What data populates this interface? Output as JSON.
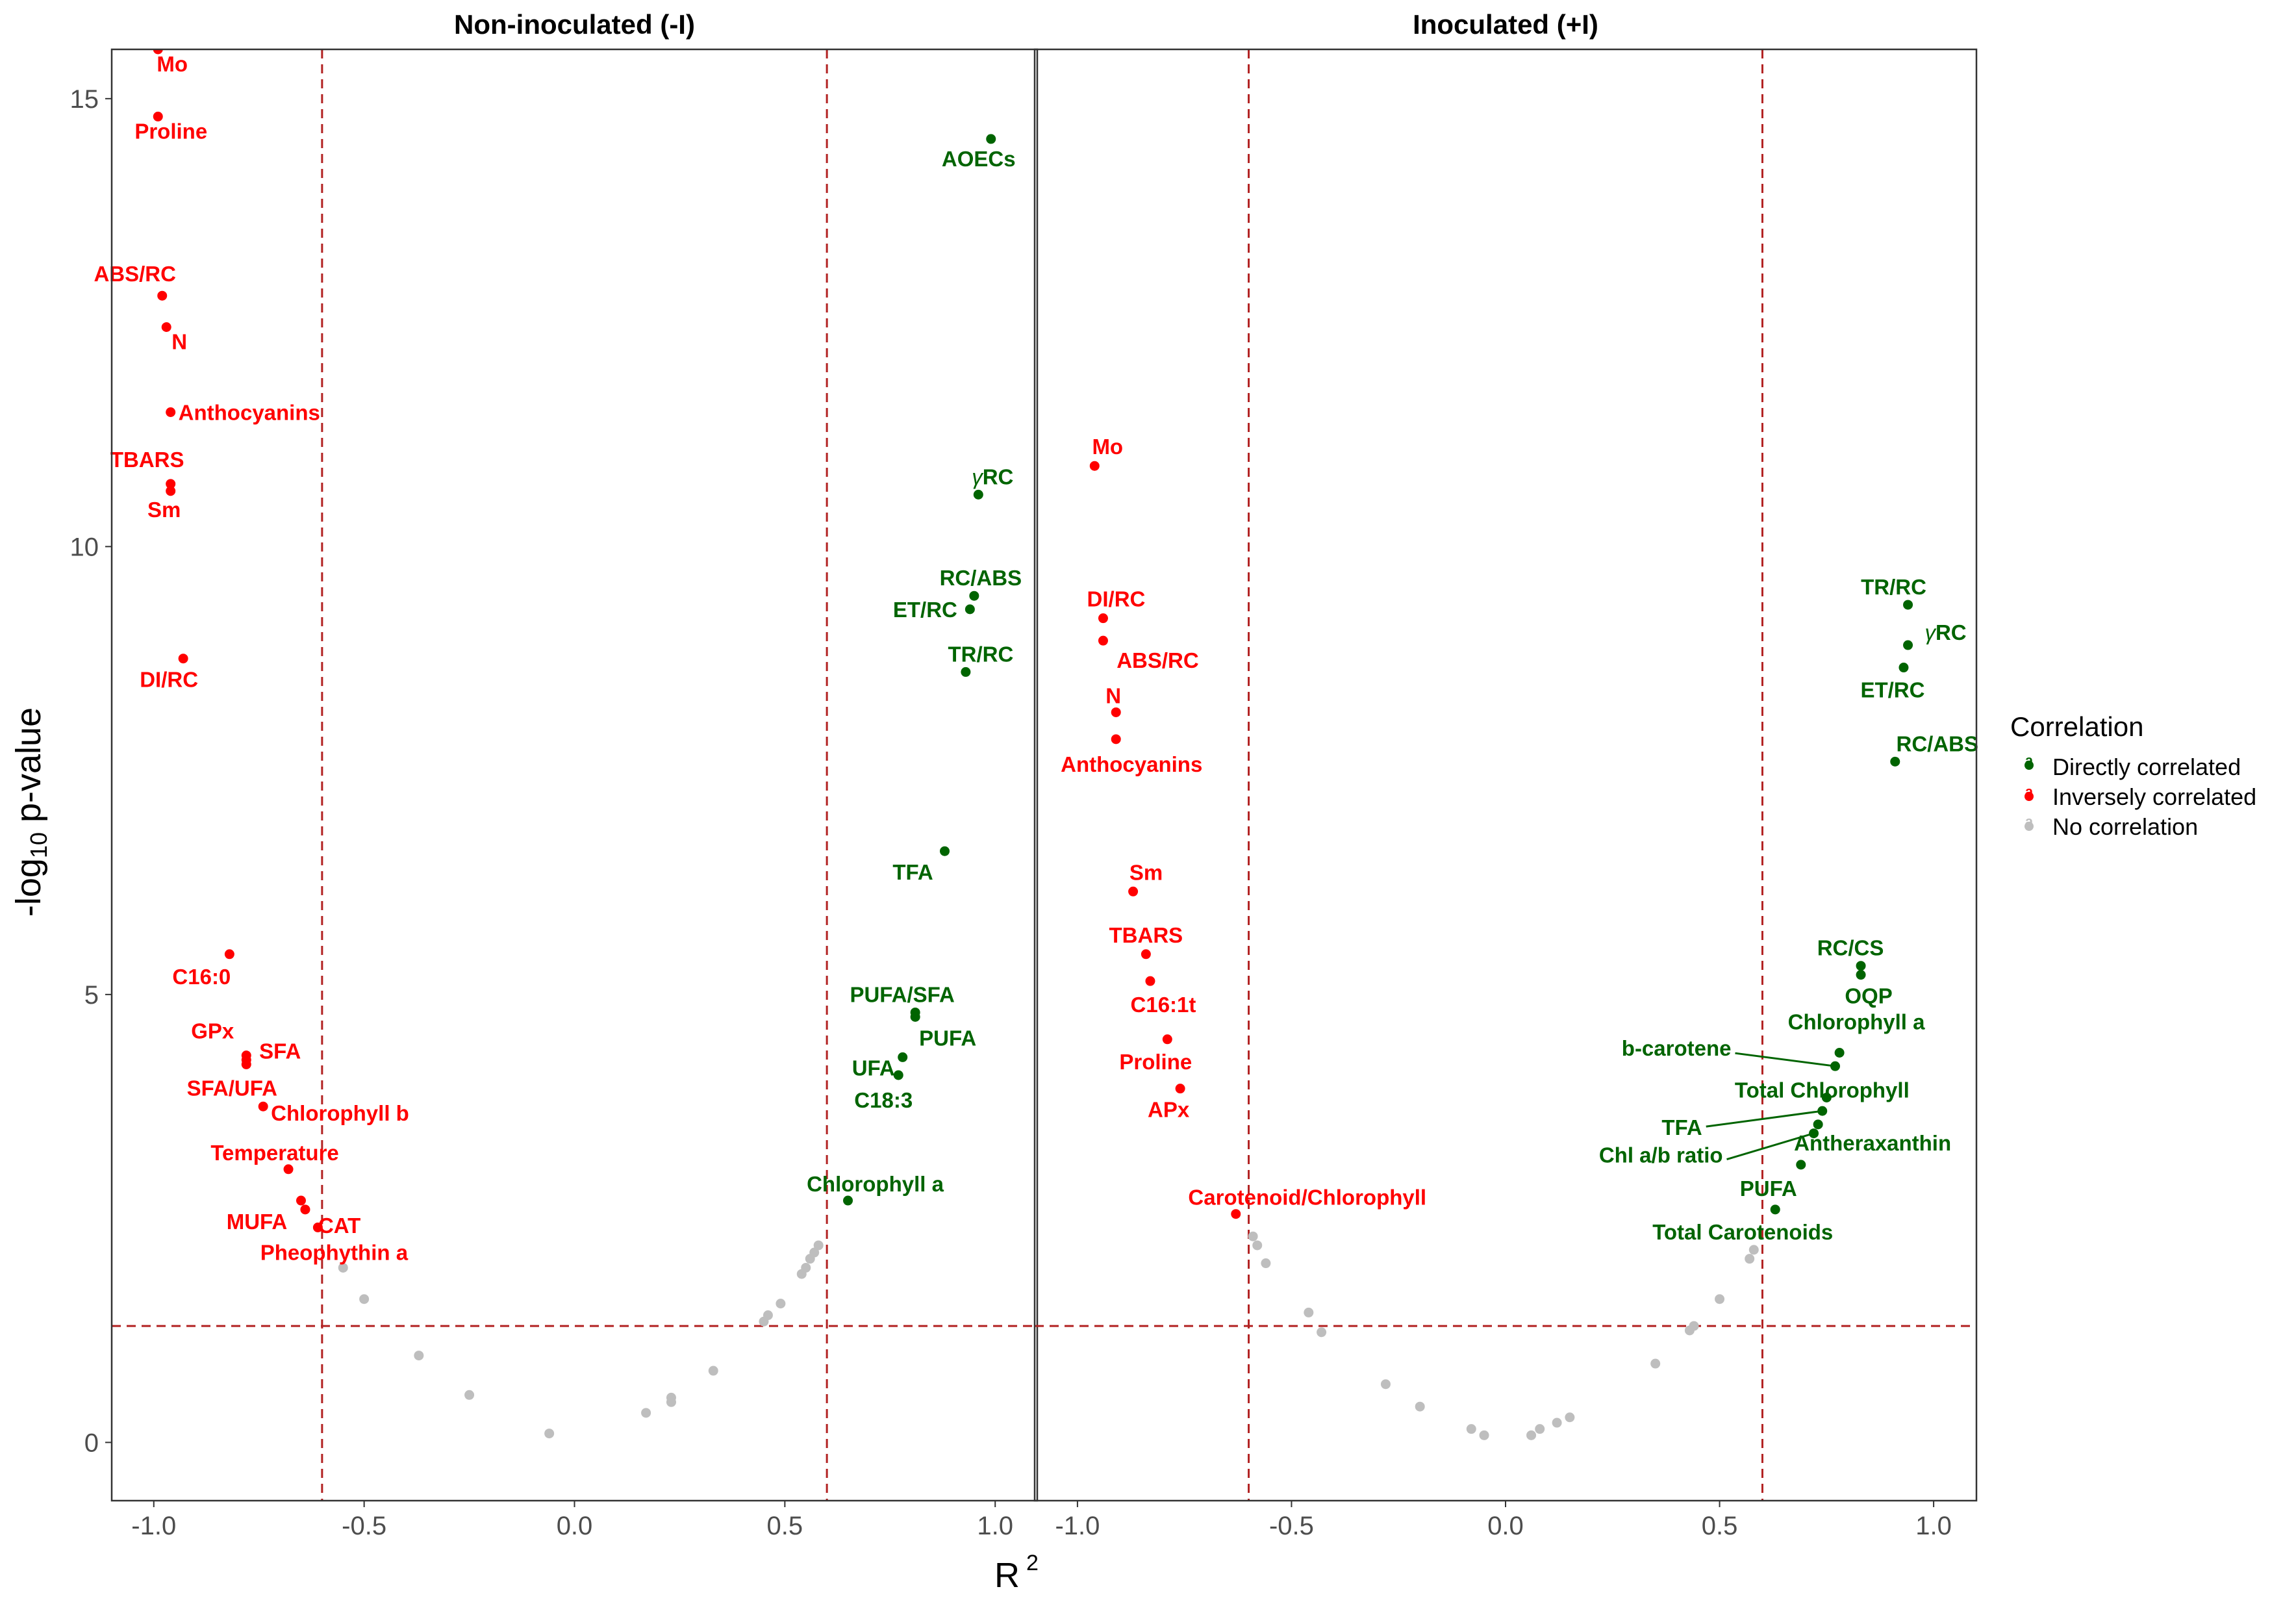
{
  "chart_data": [
    {
      "type": "scatter",
      "panel_title": "Non-inoculated (-I)",
      "xlim": [
        -1.1,
        1.1
      ],
      "ylim": [
        -0.65,
        15.55
      ],
      "x_ticks": [
        -1.0,
        -0.5,
        0.0,
        0.5,
        1.0
      ],
      "x_tick_labels": [
        "-1.0",
        "-0.5",
        "0.0",
        "0.5",
        "1.0"
      ],
      "y_ticks": [
        0,
        5,
        10,
        15
      ],
      "y_tick_labels": [
        "0",
        "5",
        "10",
        "15"
      ],
      "thresholds": {
        "x": [
          -0.6,
          0.6
        ],
        "y": 1.3
      },
      "points": [
        {
          "label": "Mo",
          "x": -0.99,
          "y": 15.55,
          "cat": "inverse"
        },
        {
          "label": "Proline",
          "x": -0.99,
          "y": 14.8,
          "cat": "inverse"
        },
        {
          "label": "ABS/RC",
          "x": -0.98,
          "y": 12.8,
          "cat": "inverse"
        },
        {
          "label": "N",
          "x": -0.97,
          "y": 12.45,
          "cat": "inverse"
        },
        {
          "label": "Anthocyanins",
          "x": -0.96,
          "y": 11.5,
          "cat": "inverse"
        },
        {
          "label": "TBARS",
          "x": -0.96,
          "y": 10.7,
          "cat": "inverse"
        },
        {
          "label": "Sm",
          "x": -0.96,
          "y": 10.62,
          "cat": "inverse"
        },
        {
          "label": "DI/RC",
          "x": -0.93,
          "y": 8.75,
          "cat": "inverse"
        },
        {
          "label": "C16:0",
          "x": -0.82,
          "y": 5.45,
          "cat": "inverse"
        },
        {
          "label": "GPx",
          "x": -0.78,
          "y": 4.32,
          "cat": "inverse"
        },
        {
          "label": "SFA",
          "x": -0.78,
          "y": 4.27,
          "cat": "inverse"
        },
        {
          "label": "SFA/UFA",
          "x": -0.78,
          "y": 4.22,
          "cat": "inverse"
        },
        {
          "label": "Chlorophyll b",
          "x": -0.74,
          "y": 3.75,
          "cat": "inverse"
        },
        {
          "label": "Temperature",
          "x": -0.68,
          "y": 3.05,
          "cat": "inverse"
        },
        {
          "label": "MUFA",
          "x": -0.65,
          "y": 2.7,
          "cat": "inverse"
        },
        {
          "label": "CAT",
          "x": -0.64,
          "y": 2.6,
          "cat": "inverse"
        },
        {
          "label": "Pheophythin a",
          "x": -0.61,
          "y": 2.4,
          "cat": "inverse"
        },
        {
          "label": "AOECs",
          "x": 0.99,
          "y": 14.55,
          "cat": "direct"
        },
        {
          "label": "γRC",
          "x": 0.96,
          "y": 10.58,
          "cat": "direct"
        },
        {
          "label": "RC/ABS",
          "x": 0.95,
          "y": 9.45,
          "cat": "direct"
        },
        {
          "label": "ET/RC",
          "x": 0.94,
          "y": 9.3,
          "cat": "direct"
        },
        {
          "label": "TR/RC",
          "x": 0.93,
          "y": 8.6,
          "cat": "direct"
        },
        {
          "label": "TFA",
          "x": 0.88,
          "y": 6.6,
          "cat": "direct"
        },
        {
          "label": "PUFA/SFA",
          "x": 0.81,
          "y": 4.8,
          "cat": "direct"
        },
        {
          "label": "PUFA",
          "x": 0.81,
          "y": 4.75,
          "cat": "direct"
        },
        {
          "label": "UFA",
          "x": 0.78,
          "y": 4.3,
          "cat": "direct"
        },
        {
          "label": "C18:3",
          "x": 0.77,
          "y": 4.1,
          "cat": "direct"
        },
        {
          "label": "Chlorophyll a",
          "x": 0.65,
          "y": 2.7,
          "cat": "direct"
        },
        {
          "label": "",
          "x": -0.55,
          "y": 1.95,
          "cat": "none"
        },
        {
          "label": "",
          "x": -0.5,
          "y": 1.6,
          "cat": "none"
        },
        {
          "label": "",
          "x": -0.37,
          "y": 0.97,
          "cat": "none"
        },
        {
          "label": "",
          "x": -0.25,
          "y": 0.53,
          "cat": "none"
        },
        {
          "label": "",
          "x": -0.06,
          "y": 0.1,
          "cat": "none"
        },
        {
          "label": "",
          "x": 0.17,
          "y": 0.33,
          "cat": "none"
        },
        {
          "label": "",
          "x": 0.23,
          "y": 0.45,
          "cat": "none"
        },
        {
          "label": "",
          "x": 0.23,
          "y": 0.5,
          "cat": "none"
        },
        {
          "label": "",
          "x": 0.33,
          "y": 0.8,
          "cat": "none"
        },
        {
          "label": "",
          "x": 0.45,
          "y": 1.35,
          "cat": "none"
        },
        {
          "label": "",
          "x": 0.46,
          "y": 1.42,
          "cat": "none"
        },
        {
          "label": "",
          "x": 0.49,
          "y": 1.55,
          "cat": "none"
        },
        {
          "label": "",
          "x": 0.54,
          "y": 1.88,
          "cat": "none"
        },
        {
          "label": "",
          "x": 0.55,
          "y": 1.95,
          "cat": "none"
        },
        {
          "label": "",
          "x": 0.56,
          "y": 2.05,
          "cat": "none"
        },
        {
          "label": "",
          "x": 0.57,
          "y": 2.12,
          "cat": "none"
        },
        {
          "label": "",
          "x": 0.58,
          "y": 2.2,
          "cat": "none"
        }
      ]
    },
    {
      "type": "scatter",
      "panel_title": "Inoculated (+I)",
      "xlim": [
        -1.1,
        1.1
      ],
      "ylim": [
        -0.65,
        15.55
      ],
      "x_ticks": [
        -1.0,
        -0.5,
        0.0,
        0.5,
        1.0
      ],
      "x_tick_labels": [
        "-1.0",
        "-0.5",
        "0.0",
        "0.5",
        "1.0"
      ],
      "y_ticks": [
        0,
        5,
        10,
        15
      ],
      "y_tick_labels": [
        "0",
        "5",
        "10",
        "15"
      ],
      "thresholds": {
        "x": [
          -0.6,
          0.6
        ],
        "y": 1.3
      },
      "points": [
        {
          "label": "Mo",
          "x": -0.96,
          "y": 10.9,
          "cat": "inverse"
        },
        {
          "label": "DI/RC",
          "x": -0.94,
          "y": 9.2,
          "cat": "inverse"
        },
        {
          "label": "ABS/RC",
          "x": -0.94,
          "y": 8.95,
          "cat": "inverse"
        },
        {
          "label": "N",
          "x": -0.91,
          "y": 8.15,
          "cat": "inverse"
        },
        {
          "label": "Anthocyanins",
          "x": -0.91,
          "y": 7.85,
          "cat": "inverse"
        },
        {
          "label": "Sm",
          "x": -0.87,
          "y": 6.15,
          "cat": "inverse"
        },
        {
          "label": "TBARS",
          "x": -0.84,
          "y": 5.45,
          "cat": "inverse"
        },
        {
          "label": "C16:1t",
          "x": -0.83,
          "y": 5.15,
          "cat": "inverse"
        },
        {
          "label": "Proline",
          "x": -0.79,
          "y": 4.5,
          "cat": "inverse"
        },
        {
          "label": "APx",
          "x": -0.76,
          "y": 3.95,
          "cat": "inverse"
        },
        {
          "label": "Carotenoid/Chlorophyll",
          "x": -0.63,
          "y": 2.55,
          "cat": "inverse"
        },
        {
          "label": "TR/RC",
          "x": 0.94,
          "y": 9.35,
          "cat": "direct"
        },
        {
          "label": "γRC",
          "x": 0.94,
          "y": 8.9,
          "cat": "direct"
        },
        {
          "label": "ET/RC",
          "x": 0.93,
          "y": 8.65,
          "cat": "direct"
        },
        {
          "label": "RC/ABS",
          "x": 0.91,
          "y": 7.6,
          "cat": "direct"
        },
        {
          "label": "RC/CS",
          "x": 0.83,
          "y": 5.32,
          "cat": "direct"
        },
        {
          "label": "OQP",
          "x": 0.83,
          "y": 5.22,
          "cat": "direct"
        },
        {
          "label": "Chlorophyll a",
          "x": 0.78,
          "y": 4.35,
          "cat": "direct"
        },
        {
          "label": "b-carotene",
          "x": 0.77,
          "y": 4.2,
          "cat": "direct"
        },
        {
          "label": "Total Chlorophyll",
          "x": 0.75,
          "y": 3.85,
          "cat": "direct"
        },
        {
          "label": "TFA",
          "x": 0.74,
          "y": 3.7,
          "cat": "direct"
        },
        {
          "label": "Antheraxanthin",
          "x": 0.73,
          "y": 3.55,
          "cat": "direct"
        },
        {
          "label": "Chl a/b ratio",
          "x": 0.72,
          "y": 3.45,
          "cat": "direct"
        },
        {
          "label": "PUFA",
          "x": 0.69,
          "y": 3.1,
          "cat": "direct"
        },
        {
          "label": "Total Carotenoids",
          "x": 0.63,
          "y": 2.6,
          "cat": "direct"
        },
        {
          "label": "",
          "x": -0.59,
          "y": 2.3,
          "cat": "none"
        },
        {
          "label": "",
          "x": -0.58,
          "y": 2.2,
          "cat": "none"
        },
        {
          "label": "",
          "x": -0.56,
          "y": 2.0,
          "cat": "none"
        },
        {
          "label": "",
          "x": -0.46,
          "y": 1.45,
          "cat": "none"
        },
        {
          "label": "",
          "x": -0.43,
          "y": 1.23,
          "cat": "none"
        },
        {
          "label": "",
          "x": -0.28,
          "y": 0.65,
          "cat": "none"
        },
        {
          "label": "",
          "x": -0.2,
          "y": 0.4,
          "cat": "none"
        },
        {
          "label": "",
          "x": -0.08,
          "y": 0.15,
          "cat": "none"
        },
        {
          "label": "",
          "x": -0.05,
          "y": 0.08,
          "cat": "none"
        },
        {
          "label": "",
          "x": 0.06,
          "y": 0.08,
          "cat": "none"
        },
        {
          "label": "",
          "x": 0.08,
          "y": 0.15,
          "cat": "none"
        },
        {
          "label": "",
          "x": 0.12,
          "y": 0.22,
          "cat": "none"
        },
        {
          "label": "",
          "x": 0.15,
          "y": 0.28,
          "cat": "none"
        },
        {
          "label": "",
          "x": 0.35,
          "y": 0.88,
          "cat": "none"
        },
        {
          "label": "",
          "x": 0.43,
          "y": 1.25,
          "cat": "none"
        },
        {
          "label": "",
          "x": 0.44,
          "y": 1.3,
          "cat": "none"
        },
        {
          "label": "",
          "x": 0.5,
          "y": 1.6,
          "cat": "none"
        },
        {
          "label": "",
          "x": 0.57,
          "y": 2.05,
          "cat": "none"
        },
        {
          "label": "",
          "x": 0.58,
          "y": 2.15,
          "cat": "none"
        }
      ]
    }
  ],
  "axes": {
    "xlabel": "R",
    "xlabel_sup": "2",
    "ylabel": "-log",
    "ylabel_sub": "10",
    "ylabel_rest": " p-value"
  },
  "legend": {
    "title": "Correlation",
    "key_glyph": "a",
    "items": [
      {
        "label": "Directly correlated",
        "cat": "direct"
      },
      {
        "label": "Inversely correlated",
        "cat": "inverse"
      },
      {
        "label": "No correlation",
        "cat": "none"
      }
    ]
  },
  "colors": {
    "direct": "#006400",
    "inverse": "#ff0000",
    "none": "#bebebe",
    "threshold": "#b22222",
    "panel_border": "#333333",
    "tick_label": "#4d4d4d"
  }
}
